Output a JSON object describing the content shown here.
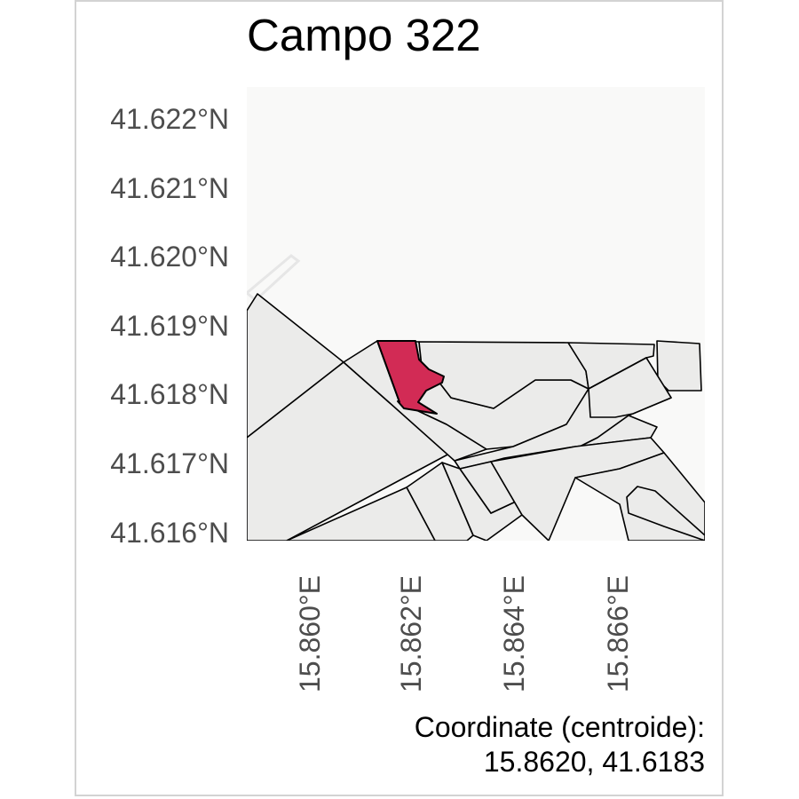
{
  "title": "Campo 322",
  "y_axis": {
    "ticks": [
      "41.622°N",
      "41.621°N",
      "41.620°N",
      "41.619°N",
      "41.618°N",
      "41.617°N",
      "41.616°N"
    ]
  },
  "x_axis": {
    "ticks": [
      "15.860°E",
      "15.862°E",
      "15.864°E",
      "15.866°E"
    ]
  },
  "caption": {
    "line1": "Coordinate (centroide):",
    "line2": "15.8620, 41.6183"
  },
  "colors": {
    "highlight": "#d22b55",
    "parcel": "#ebebea",
    "background": "#f9f9f8",
    "outline": "#000000"
  }
}
